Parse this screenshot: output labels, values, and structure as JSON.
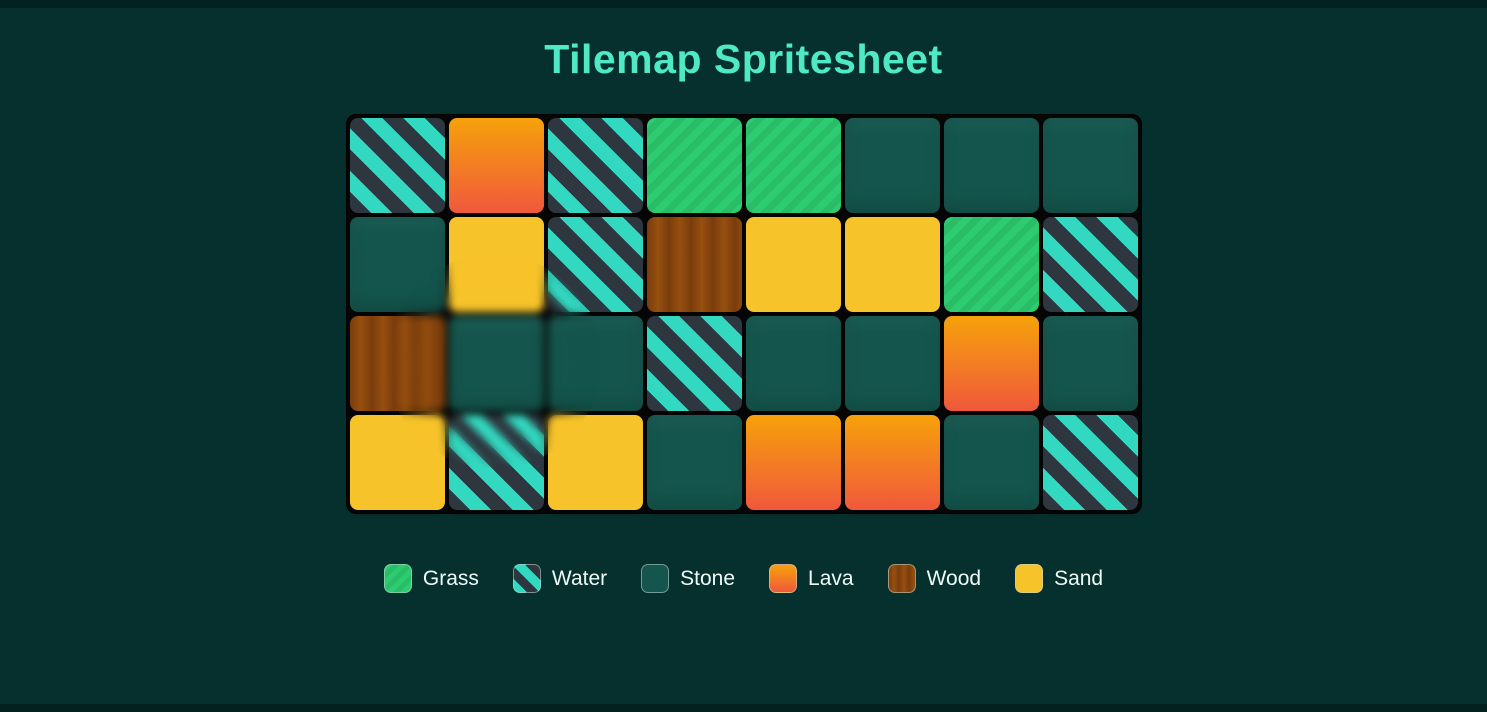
{
  "title": "Tilemap Spritesheet",
  "grid": {
    "columns": 8,
    "rows": 4,
    "tiles": [
      [
        "water",
        "lava",
        "water",
        "grass",
        "grass",
        "stone",
        "stone",
        "stone"
      ],
      [
        "stone",
        "sand",
        "water",
        "wood",
        "sand",
        "sand",
        "grass",
        "water"
      ],
      [
        "wood",
        "stone",
        "stone",
        "water",
        "stone",
        "stone",
        "lava",
        "stone"
      ],
      [
        "sand",
        "water",
        "sand",
        "stone",
        "lava",
        "lava",
        "stone",
        "water"
      ]
    ]
  },
  "legend": [
    {
      "id": "grass",
      "label": "Grass"
    },
    {
      "id": "water",
      "label": "Water"
    },
    {
      "id": "stone",
      "label": "Stone"
    },
    {
      "id": "lava",
      "label": "Lava"
    },
    {
      "id": "wood",
      "label": "Wood"
    },
    {
      "id": "sand",
      "label": "Sand"
    }
  ],
  "colors": {
    "background": "#06302d",
    "edge_band": "#02211f",
    "grid_gap": "#070707",
    "title": "#4fe9c5",
    "legend_text": "#eefaf7",
    "water_teal": "#32d9c0",
    "water_dark": "#2e3740",
    "grass_light": "#2ecc71",
    "grass_dark": "#29bd68",
    "stone": "#14564d",
    "lava_top": "#f6a20a",
    "lava_bottom": "#f0583c",
    "wood_light": "#96500e",
    "wood_dark": "#7b3c0d",
    "sand": "#f7c32a"
  }
}
